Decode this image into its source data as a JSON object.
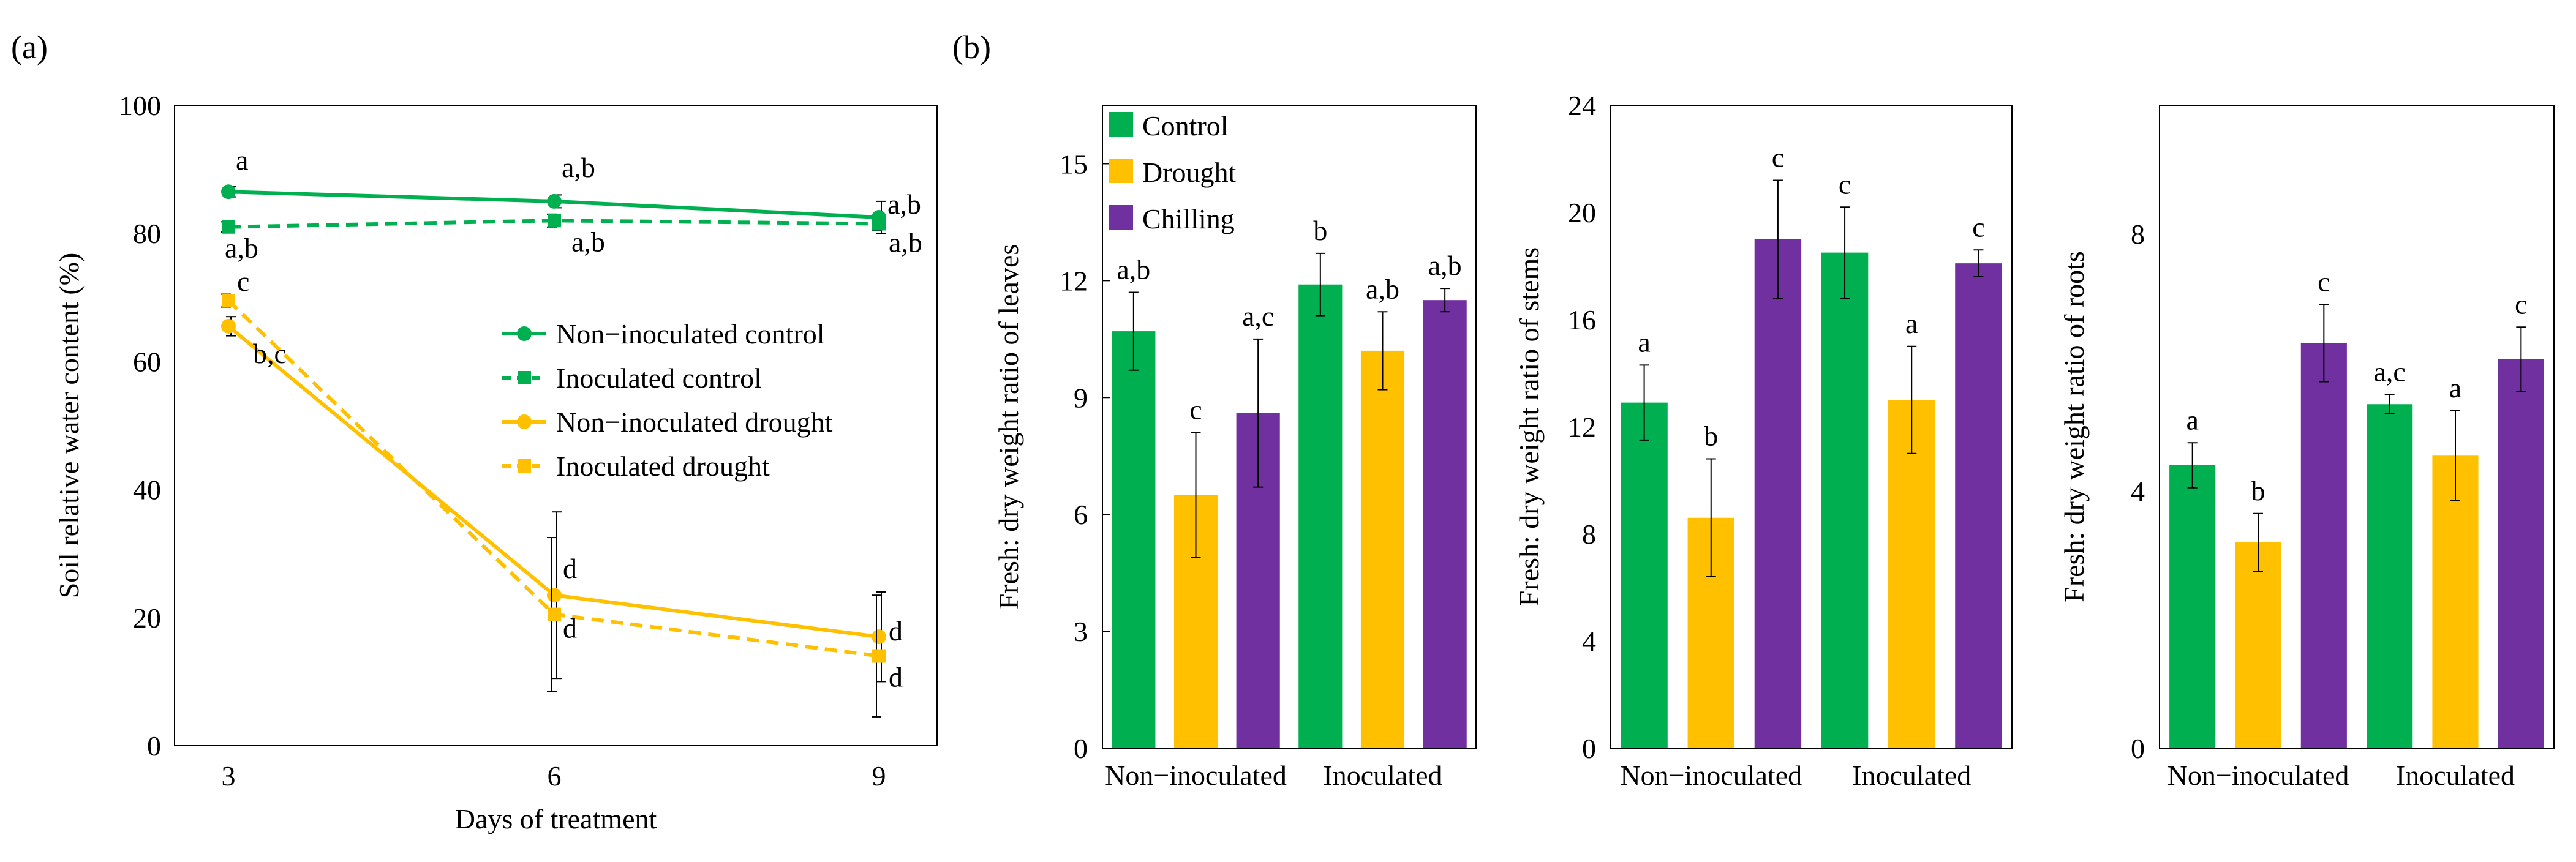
{
  "panel_labels": {
    "a": "(a)",
    "b": "(b)"
  },
  "colors": {
    "control": "#00b050",
    "drought": "#ffc000",
    "chilling": "#7030a0",
    "axis": "#000000"
  },
  "chart_data": [
    {
      "type": "line",
      "panel": "(a)",
      "xlabel": "Days of treatment",
      "ylabel": "Soil relative water content (%)",
      "x": [
        3,
        6,
        9
      ],
      "xticks": [
        "3",
        "6",
        "9"
      ],
      "ylim": [
        0,
        100
      ],
      "yticks": [
        "0",
        "20",
        "40",
        "60",
        "80",
        "100"
      ],
      "legend_position": "center-right",
      "series": [
        {
          "name": "Non−inoculated control",
          "color": "#00b050",
          "dash": false,
          "marker": "circle",
          "values": [
            86.5,
            85,
            82.5
          ],
          "errors": [
            0.8,
            1,
            2.5
          ],
          "letters": [
            "a",
            "a,b",
            "a,b"
          ]
        },
        {
          "name": "Inoculated control",
          "color": "#00b050",
          "dash": true,
          "marker": "square",
          "values": [
            81,
            82,
            81.5
          ],
          "errors": [
            0.8,
            1,
            1
          ],
          "letters": [
            "a,b",
            "a,b",
            "a,b"
          ]
        },
        {
          "name": "Non−inoculated drought",
          "color": "#ffc000",
          "dash": false,
          "marker": "circle",
          "values": [
            65.5,
            23.5,
            17
          ],
          "errors": [
            1.5,
            13,
            7
          ],
          "letters": [
            "b,c",
            "d",
            "d"
          ]
        },
        {
          "name": "Inoculated drought",
          "color": "#ffc000",
          "dash": true,
          "marker": "square",
          "values": [
            69.5,
            20.5,
            14
          ],
          "errors": [
            1,
            12,
            9.5
          ],
          "letters": [
            "c",
            "d",
            "d"
          ]
        }
      ]
    },
    {
      "type": "bar",
      "panel": "(b)",
      "ylabel": "Fresh: dry weight ratio of leaves",
      "ylim": [
        0,
        16.5
      ],
      "yticks": [
        "0",
        "3",
        "6",
        "9",
        "12",
        "15"
      ],
      "groups": [
        "Non−inoculated",
        "Inoculated"
      ],
      "legend_position": "top-left",
      "series": [
        {
          "name": "Control",
          "color": "#00b050",
          "values": [
            10.7,
            11.9
          ],
          "errors": [
            1.0,
            0.8
          ],
          "letters": [
            "a,b",
            "b"
          ]
        },
        {
          "name": "Drought",
          "color": "#ffc000",
          "values": [
            6.5,
            10.2
          ],
          "errors": [
            1.6,
            1.0
          ],
          "letters": [
            "c",
            "a,b"
          ]
        },
        {
          "name": "Chilling",
          "color": "#7030a0",
          "values": [
            8.6,
            11.5
          ],
          "errors": [
            1.9,
            0.3
          ],
          "letters": [
            "a,c",
            "a,b"
          ]
        }
      ]
    },
    {
      "type": "bar",
      "ylabel": "Fresh: dry weight ratio of stems",
      "ylim": [
        0,
        24
      ],
      "yticks": [
        "0",
        "4",
        "8",
        "12",
        "16",
        "20",
        "24"
      ],
      "groups": [
        "Non−inoculated",
        "Inoculated"
      ],
      "series": [
        {
          "name": "Control",
          "color": "#00b050",
          "values": [
            12.9,
            18.5
          ],
          "errors": [
            1.4,
            1.7
          ],
          "letters": [
            "a",
            "c"
          ]
        },
        {
          "name": "Drought",
          "color": "#ffc000",
          "values": [
            8.6,
            13.0
          ],
          "errors": [
            2.2,
            2.0
          ],
          "letters": [
            "b",
            "a"
          ]
        },
        {
          "name": "Chilling",
          "color": "#7030a0",
          "values": [
            19.0,
            18.1
          ],
          "errors": [
            2.2,
            0.5
          ],
          "letters": [
            "c",
            "c"
          ]
        }
      ]
    },
    {
      "type": "bar",
      "ylabel": "Fresh: dry weight ratio of roots",
      "ylim": [
        0,
        10
      ],
      "yticks": [
        "0",
        "4",
        "8"
      ],
      "groups": [
        "Non−inoculated",
        "Inoculated"
      ],
      "series": [
        {
          "name": "Control",
          "color": "#00b050",
          "values": [
            4.4,
            5.35
          ],
          "errors": [
            0.35,
            0.15
          ],
          "letters": [
            "a",
            "a,c"
          ]
        },
        {
          "name": "Drought",
          "color": "#ffc000",
          "values": [
            3.2,
            4.55
          ],
          "errors": [
            0.45,
            0.7
          ],
          "letters": [
            "b",
            "a"
          ]
        },
        {
          "name": "Chilling",
          "color": "#7030a0",
          "values": [
            6.3,
            6.05
          ],
          "errors": [
            0.6,
            0.5
          ],
          "letters": [
            "c",
            "c"
          ]
        }
      ]
    }
  ]
}
